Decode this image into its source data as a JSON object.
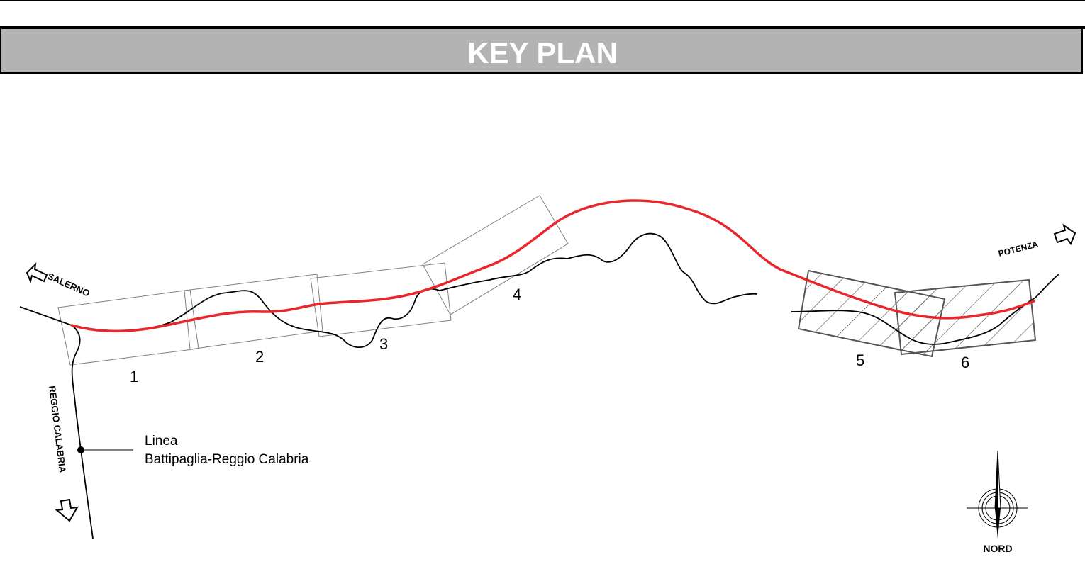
{
  "header": {
    "title": "KEY PLAN"
  },
  "directions": {
    "salerno": "SALERNO",
    "potenza": "POTENZA",
    "reggio_calabria": "REGGIO CALABRIA"
  },
  "legend": {
    "line1": "Linea",
    "line2": "Battipaglia-Reggio Calabria"
  },
  "sections": [
    {
      "label": "1",
      "hatched": false
    },
    {
      "label": "2",
      "hatched": false
    },
    {
      "label": "3",
      "hatched": false
    },
    {
      "label": "4",
      "hatched": false
    },
    {
      "label": "5",
      "hatched": true
    },
    {
      "label": "6",
      "hatched": true
    }
  ],
  "compass": {
    "label": "NORD"
  },
  "colors": {
    "route": "#e8262b",
    "existing_line": "#000000",
    "header_band": "#b3b3b3",
    "section_outline": "#808080",
    "hatched_section_outline": "#555555"
  }
}
